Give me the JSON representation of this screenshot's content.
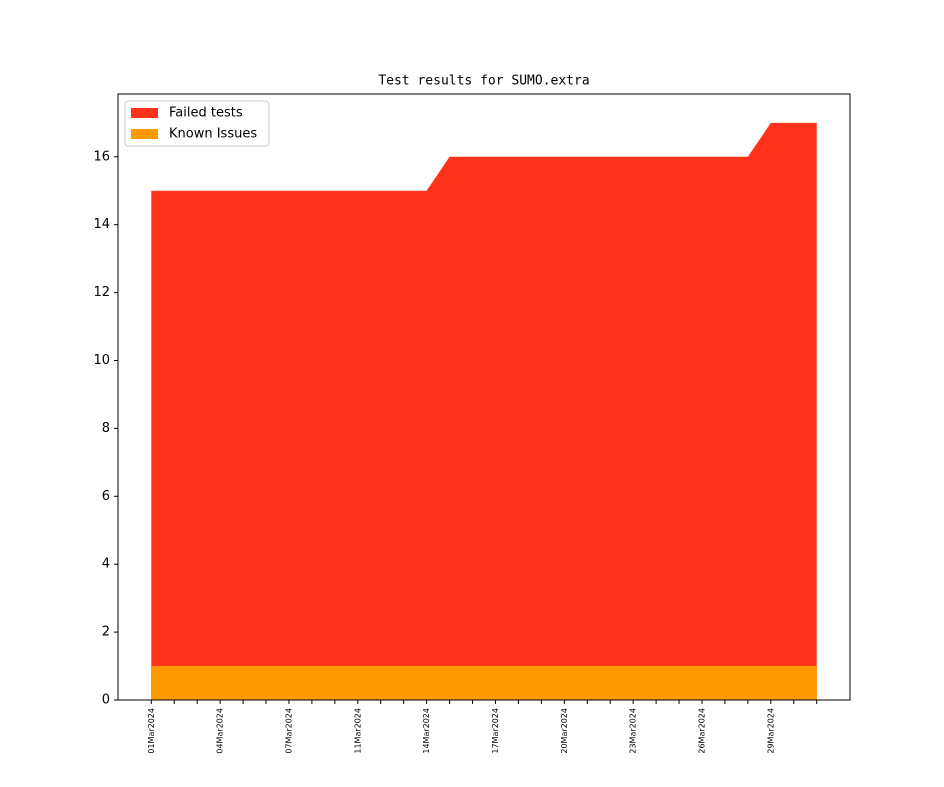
{
  "chart_data": {
    "type": "area",
    "title": "Test results for SUMO.extra",
    "categories": [
      "01Mar2024",
      null,
      null,
      "04Mar2024",
      null,
      null,
      "07Mar2024",
      null,
      null,
      "11Mar2024",
      null,
      null,
      "14Mar2024",
      null,
      null,
      "17Mar2024",
      null,
      null,
      "20Mar2024",
      null,
      null,
      "23Mar2024",
      null,
      null,
      "26Mar2024",
      null,
      null,
      "29Mar2024",
      null,
      null
    ],
    "series": [
      {
        "name": "Failed tests",
        "color": "#ff331c",
        "values": [
          15,
          15,
          15,
          15,
          15,
          15,
          15,
          15,
          15,
          15,
          15,
          15,
          15,
          16,
          16,
          16,
          16,
          16,
          16,
          16,
          16,
          16,
          16,
          16,
          16,
          16,
          16,
          17,
          17,
          17
        ]
      },
      {
        "name": "Known Issues",
        "color": "#ff9900",
        "values": [
          1,
          1,
          1,
          1,
          1,
          1,
          1,
          1,
          1,
          1,
          1,
          1,
          1,
          1,
          1,
          1,
          1,
          1,
          1,
          1,
          1,
          1,
          1,
          1,
          1,
          1,
          1,
          1,
          1,
          1
        ]
      }
    ],
    "xlim": [
      -1.45,
      30.45
    ],
    "ylim": [
      0,
      17.85
    ],
    "yticks": [
      0,
      2,
      4,
      6,
      8,
      10,
      12,
      14,
      16
    ],
    "legend": "upper left"
  }
}
